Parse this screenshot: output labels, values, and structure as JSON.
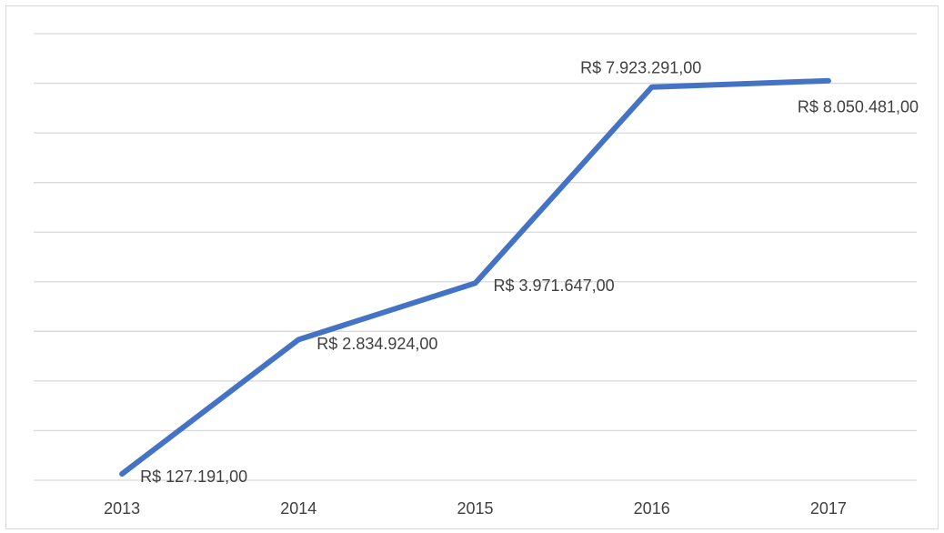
{
  "chart_data": {
    "type": "line",
    "categories": [
      "2013",
      "2014",
      "2015",
      "2016",
      "2017"
    ],
    "series": [
      {
        "color": "#4472c4",
        "values": [
          127191,
          2834924,
          3971647,
          7923291,
          8050481
        ],
        "value_labels": [
          "R$ 127.191,00",
          "R$ 2.834.924,00",
          "R$ 3.971.647,00",
          "R$ 7.923.291,00",
          "R$ 8.050.481,00"
        ]
      }
    ],
    "ylim": [
      0,
      9000000
    ],
    "yticks": [
      0,
      1000000,
      2000000,
      3000000,
      4000000,
      5000000,
      6000000,
      7000000,
      8000000,
      9000000
    ],
    "grid": true
  }
}
